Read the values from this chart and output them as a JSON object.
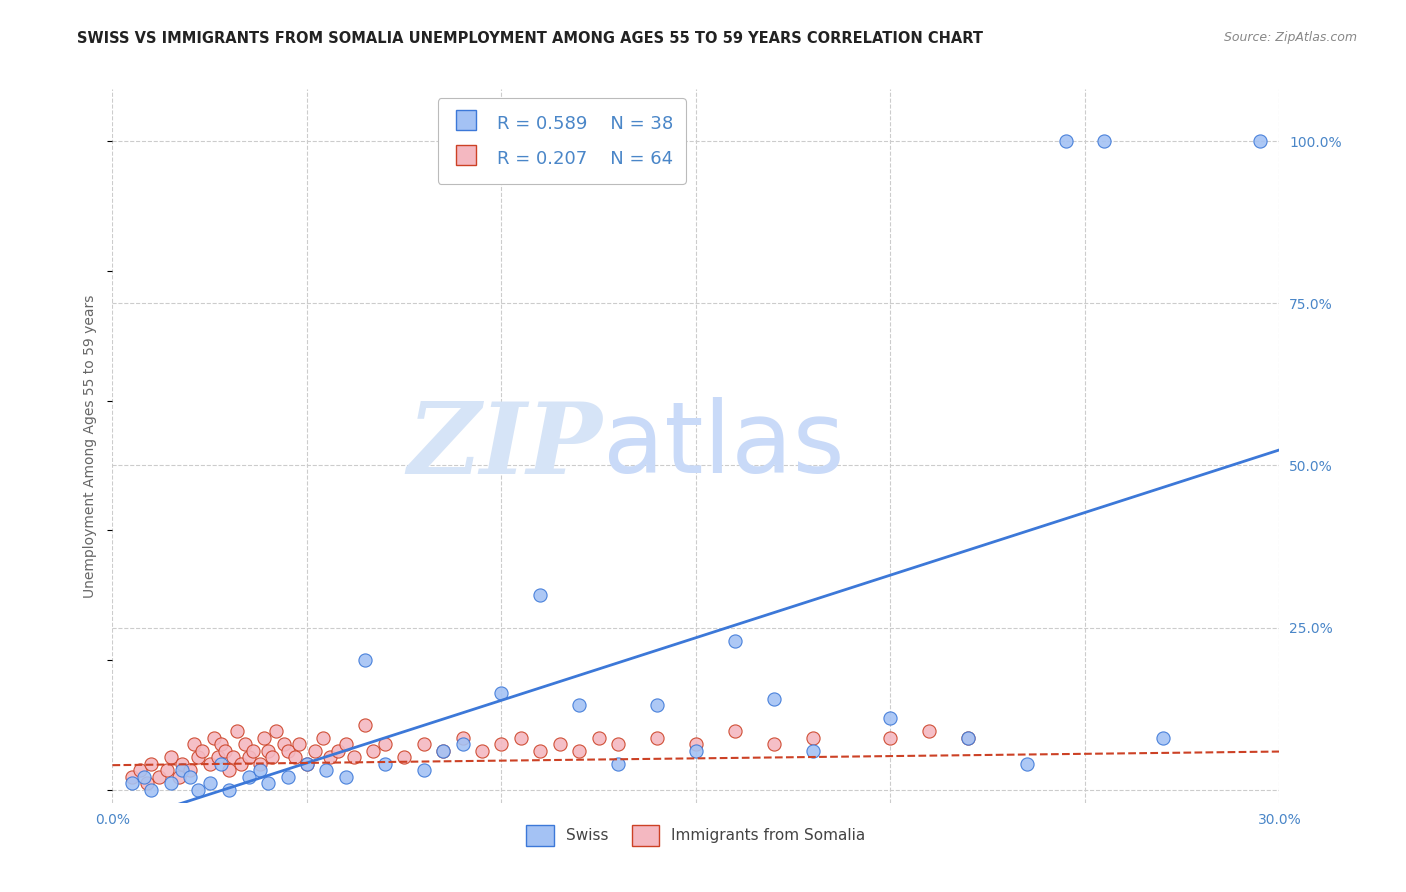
{
  "title": "SWISS VS IMMIGRANTS FROM SOMALIA UNEMPLOYMENT AMONG AGES 55 TO 59 YEARS CORRELATION CHART",
  "source": "Source: ZipAtlas.com",
  "ylabel": "Unemployment Among Ages 55 to 59 years",
  "xlim": [
    0.0,
    0.3
  ],
  "ylim": [
    -0.02,
    1.08
  ],
  "xticks": [
    0.0,
    0.05,
    0.1,
    0.15,
    0.2,
    0.25,
    0.3
  ],
  "xticklabels": [
    "0.0%",
    "",
    "",
    "",
    "",
    "",
    "30.0%"
  ],
  "yticks_right": [
    0.0,
    0.25,
    0.5,
    0.75,
    1.0
  ],
  "yticklabels_right": [
    "",
    "25.0%",
    "50.0%",
    "75.0%",
    "100.0%"
  ],
  "blue_R": 0.589,
  "blue_N": 38,
  "pink_R": 0.207,
  "pink_N": 64,
  "blue_color": "#a4c2f4",
  "pink_color": "#f4b8c1",
  "blue_line_color": "#3c78d8",
  "pink_line_color": "#cc4125",
  "axis_color": "#4a86c8",
  "watermark_zip": "ZIP",
  "watermark_atlas": "atlas",
  "watermark_color_zip": "#d6e4f7",
  "watermark_color_atlas": "#c9daf8",
  "blue_scatter_x": [
    0.005,
    0.008,
    0.01,
    0.015,
    0.018,
    0.02,
    0.022,
    0.025,
    0.028,
    0.03,
    0.035,
    0.038,
    0.04,
    0.045,
    0.05,
    0.055,
    0.06,
    0.065,
    0.07,
    0.08,
    0.085,
    0.09,
    0.1,
    0.11,
    0.12,
    0.13,
    0.14,
    0.15,
    0.16,
    0.17,
    0.18,
    0.2,
    0.22,
    0.235,
    0.245,
    0.255,
    0.27,
    0.295
  ],
  "blue_scatter_y": [
    0.01,
    0.02,
    0.0,
    0.01,
    0.03,
    0.02,
    0.0,
    0.01,
    0.04,
    0.0,
    0.02,
    0.03,
    0.01,
    0.02,
    0.04,
    0.03,
    0.02,
    0.2,
    0.04,
    0.03,
    0.06,
    0.07,
    0.15,
    0.3,
    0.13,
    0.04,
    0.13,
    0.06,
    0.23,
    0.14,
    0.06,
    0.11,
    0.08,
    0.04,
    1.0,
    1.0,
    0.08,
    1.0
  ],
  "pink_scatter_x": [
    0.005,
    0.007,
    0.009,
    0.01,
    0.012,
    0.014,
    0.015,
    0.017,
    0.018,
    0.02,
    0.021,
    0.022,
    0.023,
    0.025,
    0.026,
    0.027,
    0.028,
    0.029,
    0.03,
    0.031,
    0.032,
    0.033,
    0.034,
    0.035,
    0.036,
    0.038,
    0.039,
    0.04,
    0.041,
    0.042,
    0.044,
    0.045,
    0.047,
    0.048,
    0.05,
    0.052,
    0.054,
    0.056,
    0.058,
    0.06,
    0.062,
    0.065,
    0.067,
    0.07,
    0.075,
    0.08,
    0.085,
    0.09,
    0.095,
    0.1,
    0.105,
    0.11,
    0.115,
    0.12,
    0.125,
    0.13,
    0.14,
    0.15,
    0.16,
    0.17,
    0.18,
    0.2,
    0.21,
    0.22
  ],
  "pink_scatter_y": [
    0.02,
    0.03,
    0.01,
    0.04,
    0.02,
    0.03,
    0.05,
    0.02,
    0.04,
    0.03,
    0.07,
    0.05,
    0.06,
    0.04,
    0.08,
    0.05,
    0.07,
    0.06,
    0.03,
    0.05,
    0.09,
    0.04,
    0.07,
    0.05,
    0.06,
    0.04,
    0.08,
    0.06,
    0.05,
    0.09,
    0.07,
    0.06,
    0.05,
    0.07,
    0.04,
    0.06,
    0.08,
    0.05,
    0.06,
    0.07,
    0.05,
    0.1,
    0.06,
    0.07,
    0.05,
    0.07,
    0.06,
    0.08,
    0.06,
    0.07,
    0.08,
    0.06,
    0.07,
    0.06,
    0.08,
    0.07,
    0.08,
    0.07,
    0.09,
    0.07,
    0.08,
    0.08,
    0.09,
    0.08
  ],
  "legend_label_swiss": "Swiss",
  "legend_label_somalia": "Immigrants from Somalia",
  "grid_color": "#cccccc",
  "background_color": "#ffffff",
  "title_fontsize": 10.5,
  "label_fontsize": 10,
  "tick_fontsize": 10,
  "legend_fontsize": 13,
  "blue_line_slope": 1.93,
  "blue_line_intercept": -0.055,
  "pink_line_slope": 0.07,
  "pink_line_intercept": 0.038
}
